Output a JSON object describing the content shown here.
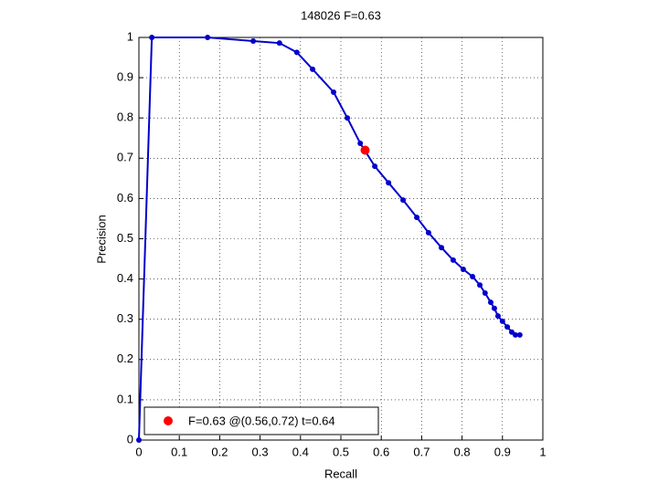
{
  "chart_data": {
    "type": "line",
    "title": "148026 F=0.63",
    "xlabel": "Recall",
    "ylabel": "Precision",
    "xlim": [
      0,
      1
    ],
    "ylim": [
      0,
      1
    ],
    "xticks": [
      0,
      0.1,
      0.2,
      0.3,
      0.4,
      0.5,
      0.6,
      0.7,
      0.8,
      0.9,
      1
    ],
    "yticks": [
      0,
      0.1,
      0.2,
      0.3,
      0.4,
      0.5,
      0.6,
      0.7,
      0.8,
      0.9,
      1
    ],
    "grid": true,
    "legend": "lower left",
    "series": [
      {
        "color": "#0000cc",
        "x": [
          0,
          0.032,
          0.17,
          0.283,
          0.348,
          0.391,
          0.43,
          0.482,
          0.516,
          0.548,
          0.584,
          0.618,
          0.654,
          0.688,
          0.717,
          0.749,
          0.778,
          0.803,
          0.826,
          0.844,
          0.857,
          0.871,
          0.88,
          0.889,
          0.9,
          0.912,
          0.923,
          0.932,
          0.943
        ],
        "values": [
          0,
          1,
          1,
          0.991,
          0.986,
          0.963,
          0.921,
          0.864,
          0.8,
          0.737,
          0.68,
          0.639,
          0.596,
          0.553,
          0.515,
          0.478,
          0.447,
          0.424,
          0.406,
          0.385,
          0.365,
          0.342,
          0.327,
          0.308,
          0.295,
          0.281,
          0.268,
          0.261,
          0.261
        ]
      },
      {
        "name": "F=0.63 @(0.56,0.72) t=0.64",
        "color": "#ff0000",
        "x": [
          0.56
        ],
        "values": [
          0.72
        ]
      }
    ]
  }
}
